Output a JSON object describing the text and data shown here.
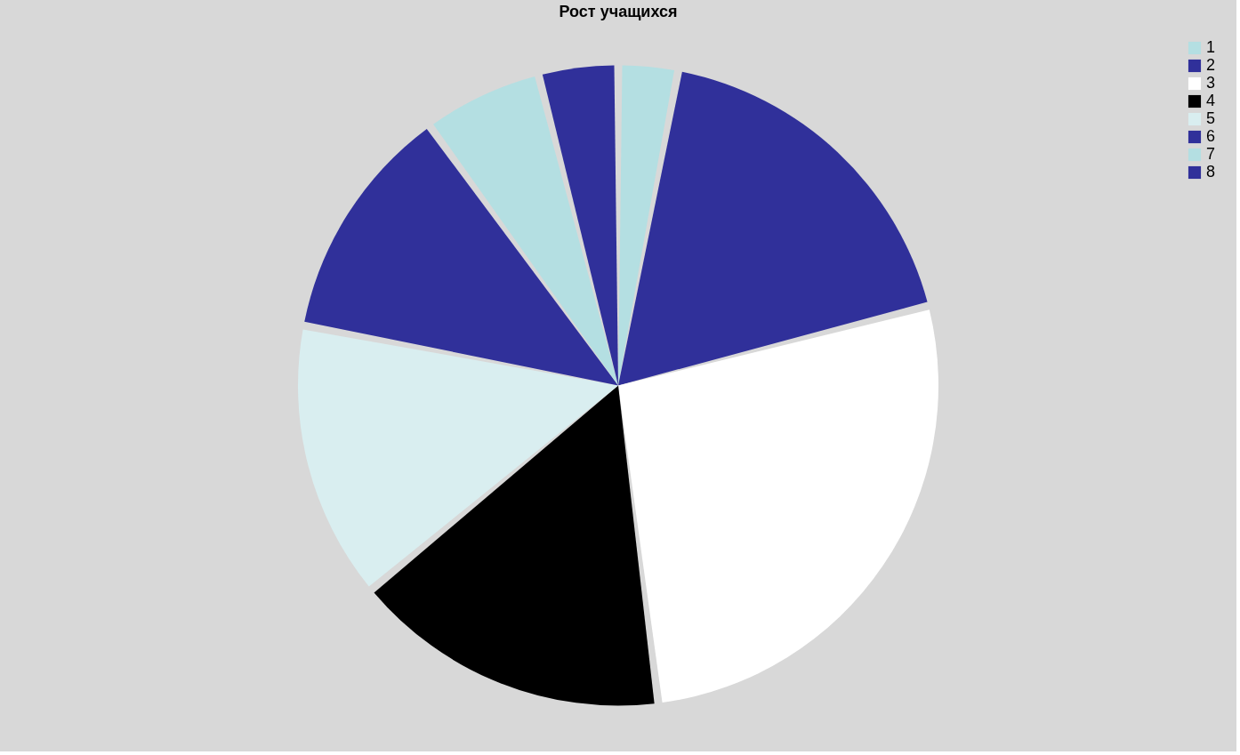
{
  "chart_data": {
    "type": "pie",
    "title": "Рост учащихся",
    "categories": [
      "1",
      "2",
      "3",
      "4",
      "5",
      "6",
      "7",
      "8"
    ],
    "values": [
      3,
      18,
      27,
      16,
      14,
      12,
      6,
      4
    ],
    "colors": [
      "#b4dfe2",
      "#30309a",
      "#ffffff",
      "#000000",
      "#d9eef0",
      "#30309a",
      "#b4dfe2",
      "#30309a"
    ],
    "legend": "top right"
  }
}
